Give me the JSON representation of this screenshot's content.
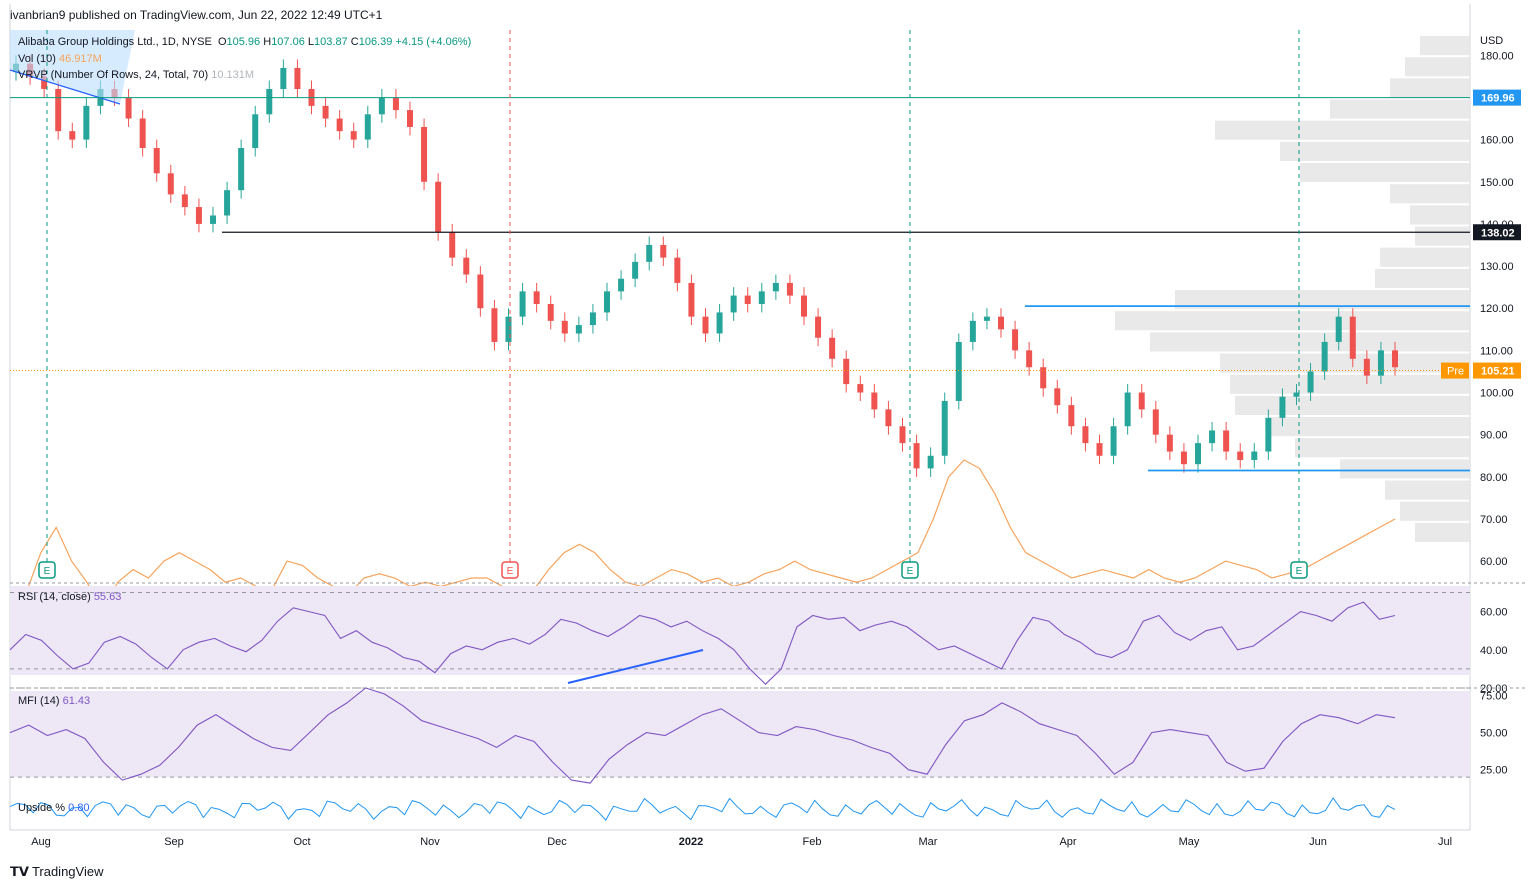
{
  "header": {
    "publisher_line": "ivanbrian9 published on TradingView.com, Jun 22, 2022 12:49 UTC+1"
  },
  "legend": {
    "symbol": "Alibaba Group Holdings Ltd., 1D, NYSE",
    "o_label": "O",
    "o_value": "105.96",
    "h_label": "H",
    "h_value": "107.06",
    "l_label": "L",
    "l_value": "103.87",
    "c_label": "C",
    "c_value": "106.39",
    "change": "+4.15 (+4.06%)",
    "vol_label": "Vol (10)",
    "vol_value": "46.917M",
    "vrvp_label": "VRVP (Number Of Rows, 24, Total, 70)",
    "vrvp_value": "10.131M",
    "rsi_label": "RSI (14, close)",
    "rsi_value": "55.63",
    "mfi_label": "MFI (14)",
    "mfi_value": "61.43",
    "upside_label": "Upside %",
    "upside_value": "0.80"
  },
  "footer": {
    "brand": "TradingView"
  },
  "colors": {
    "up": "#26a69a",
    "down": "#ef5350",
    "volume_line": "#f7a35c",
    "rsi": "#7e57c2",
    "band": "#ede7f6",
    "trend": "#2962ff",
    "hline_teal": "#089981",
    "hline_black": "#131722"
  },
  "chart_data": {
    "type": "candlestick",
    "currency": "USD",
    "x_tick_labels": [
      "Aug",
      "Sep",
      "Oct",
      "Nov",
      "Dec",
      "2022",
      "Feb",
      "Mar",
      "Apr",
      "May",
      "Jun",
      "Jul"
    ],
    "price_axis": {
      "ylim": [
        56,
        186
      ],
      "ticks": [
        60,
        70,
        80,
        90,
        100,
        110,
        120,
        130,
        140,
        150,
        160,
        170,
        180
      ]
    },
    "price_ticks": [
      "60.00",
      "70.00",
      "80.00",
      "90.00",
      "100.00",
      "110.00",
      "120.00",
      "130.00",
      "140.00",
      "150.00",
      "160.00",
      "170.00",
      "180.00"
    ],
    "price_labels": [
      {
        "value": 169.96,
        "text": "169.96"
      },
      {
        "value": 138.02,
        "text": "138.02"
      },
      {
        "value": 105.21,
        "text": "105.21",
        "tag": "Pre"
      }
    ],
    "horizontal_lines": [
      {
        "value": 169.96
      },
      {
        "value": 138.02
      },
      {
        "value": 105.21
      }
    ],
    "earnings_markers": [
      {
        "month": "Aug",
        "label": "E",
        "color": "teal"
      },
      {
        "month": "Nov",
        "label": "E",
        "color": "red"
      },
      {
        "month": "Feb",
        "label": "E",
        "color": "teal"
      },
      {
        "month": "May",
        "label": "E",
        "color": "teal"
      }
    ],
    "candles_close_path": [
      178,
      175,
      172,
      162,
      160,
      168,
      172,
      170,
      165,
      158,
      152,
      147,
      144,
      140,
      142,
      148,
      158,
      166,
      172,
      177,
      172,
      168,
      165,
      162,
      160,
      166,
      170,
      167,
      163,
      150,
      138,
      132,
      128,
      120,
      112,
      118,
      124,
      121,
      117,
      114,
      116,
      119,
      124,
      127,
      131,
      135,
      132,
      126,
      118,
      114,
      119,
      123,
      121,
      124,
      126,
      123,
      118,
      113,
      108,
      102,
      100,
      96,
      92,
      88,
      82,
      85,
      98,
      112,
      117,
      118,
      115,
      110,
      106,
      101,
      97,
      92,
      88,
      85,
      92,
      100,
      96,
      90,
      86,
      83,
      88,
      91,
      86,
      84,
      86,
      94,
      99,
      100,
      105,
      112,
      118,
      108,
      104,
      110,
      106
    ],
    "rsi": {
      "ylim": [
        20,
        75
      ],
      "ticks": [
        "20.00",
        "40.00",
        "60.00"
      ],
      "levels": [
        30,
        70
      ]
    },
    "mfi": {
      "ylim": [
        10,
        80
      ],
      "ticks": [
        "25.00",
        "50.00",
        "75.00"
      ],
      "levels": [
        20,
        80
      ]
    }
  }
}
